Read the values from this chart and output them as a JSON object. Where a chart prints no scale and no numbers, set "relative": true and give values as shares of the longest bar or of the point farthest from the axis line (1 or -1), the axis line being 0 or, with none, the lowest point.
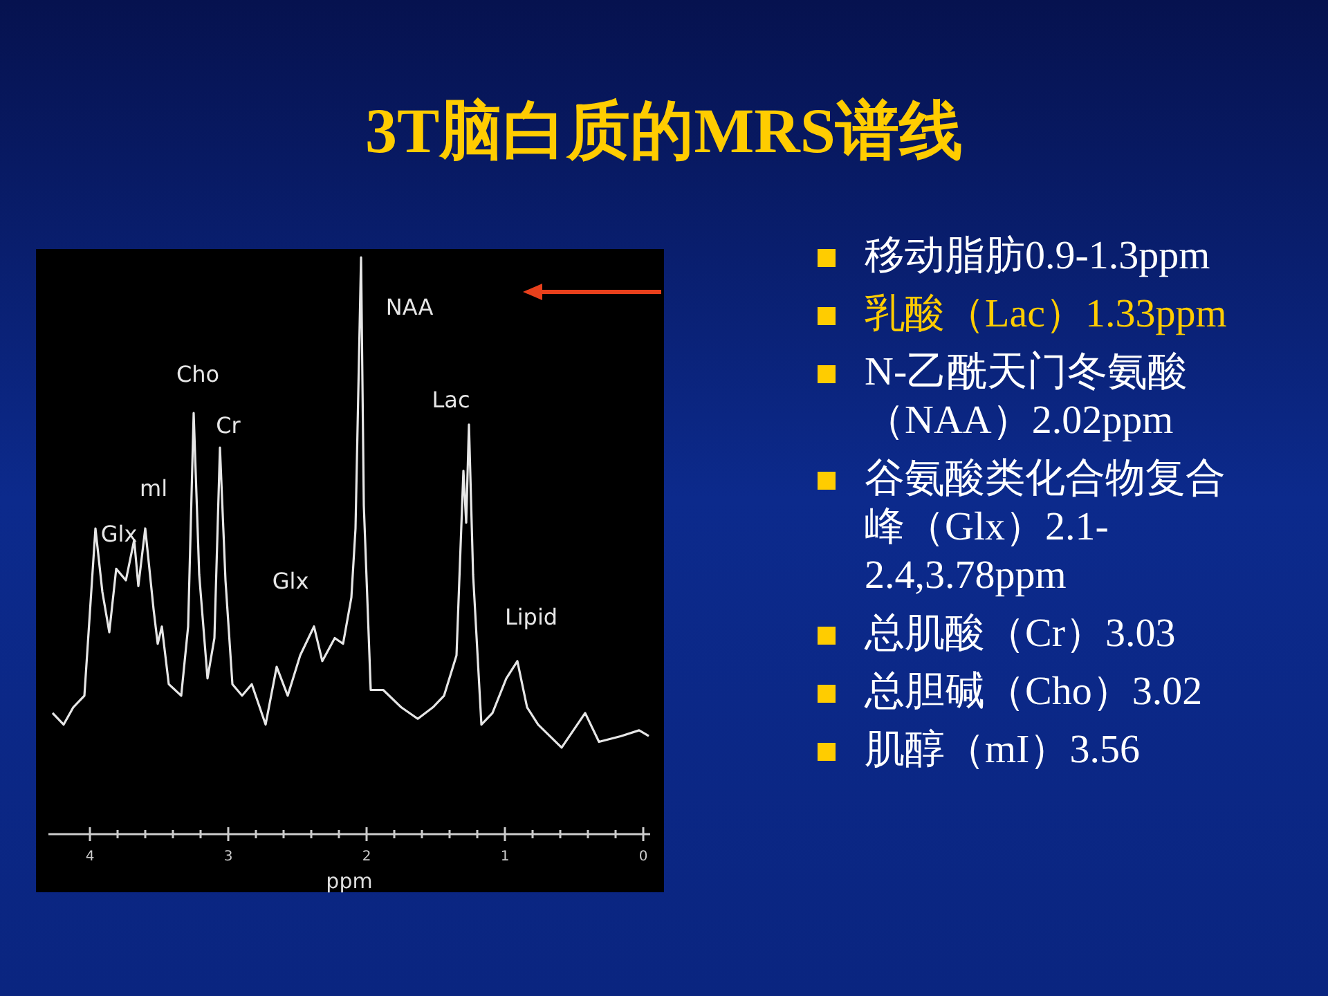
{
  "chart_data": {
    "type": "line",
    "title": "3T脑白质的MRS谱线",
    "xlabel": "ppm",
    "relative": true,
    "xlim": [
      4.3,
      -0.05
    ],
    "xticks": [
      4,
      {
        "value": 3.8,
        "label": null
      },
      {
        "value": 3.6,
        "label": null
      },
      {
        "value": 3.4,
        "label": null
      },
      {
        "value": 3.2,
        "label": null
      },
      3,
      {
        "value": 2.8,
        "label": null
      },
      {
        "value": 2.6,
        "label": null
      },
      {
        "value": 2.4,
        "label": null
      },
      {
        "value": 2.2,
        "label": null
      },
      2,
      {
        "value": 1.8,
        "label": null
      },
      {
        "value": 1.6,
        "label": null
      },
      {
        "value": 1.4,
        "label": null
      },
      {
        "value": 1.2,
        "label": null
      },
      1,
      {
        "value": 0.8,
        "label": null
      },
      {
        "value": 0.6,
        "label": null
      },
      {
        "value": 0.4,
        "label": null
      },
      {
        "value": 0.2,
        "label": null
      },
      0
    ],
    "grid": false,
    "marker": "none",
    "line_style": "solid",
    "series": [
      {
        "color": "#e6e6e6",
        "x": [
          4.27,
          4.19,
          4.12,
          4.04,
          3.96,
          3.91,
          3.86,
          3.81,
          3.74,
          3.68,
          3.65,
          3.6,
          3.54,
          3.51,
          3.48,
          3.43,
          3.34,
          3.29,
          3.25,
          3.21,
          3.15,
          3.1,
          3.06,
          3.02,
          2.97,
          2.9,
          2.83,
          2.73,
          2.65,
          2.57,
          2.48,
          2.38,
          2.32,
          2.23,
          2.17,
          2.11,
          2.08,
          2.04,
          2.02,
          1.97,
          1.88,
          1.75,
          1.63,
          1.52,
          1.44,
          1.35,
          1.3,
          1.28,
          1.26,
          1.23,
          1.17,
          1.09,
          0.99,
          0.91,
          0.84,
          0.76,
          0.59,
          0.42,
          0.32,
          0.16,
          0.03,
          -0.04
        ],
        "values": [
          0.21,
          0.19,
          0.22,
          0.24,
          0.53,
          0.42,
          0.35,
          0.46,
          0.44,
          0.51,
          0.43,
          0.53,
          0.39,
          0.33,
          0.36,
          0.26,
          0.24,
          0.36,
          0.73,
          0.45,
          0.27,
          0.34,
          0.67,
          0.44,
          0.26,
          0.24,
          0.26,
          0.19,
          0.29,
          0.24,
          0.31,
          0.36,
          0.3,
          0.34,
          0.33,
          0.41,
          0.53,
          1,
          0.57,
          0.25,
          0.25,
          0.22,
          0.2,
          0.22,
          0.24,
          0.31,
          0.63,
          0.54,
          0.71,
          0.45,
          0.19,
          0.21,
          0.27,
          0.3,
          0.22,
          0.19,
          0.15,
          0.21,
          0.16,
          0.17,
          0.18,
          0.17
        ]
      }
    ],
    "annotations": [
      {
        "text": "Glx",
        "x": 3.96,
        "y": 0.53
      },
      {
        "text": "ml",
        "x": 3.6,
        "y": 0.53
      },
      {
        "text": "Cho",
        "x": 3.25,
        "y": 0.73
      },
      {
        "text": "Cr",
        "x": 3.06,
        "y": 0.67
      },
      {
        "text": "Glx",
        "x": 2.38,
        "y": 0.36
      },
      {
        "text": "NAA",
        "x": 2.04,
        "y": 1
      },
      {
        "text": "Lac",
        "x": 1.26,
        "y": 0.71
      },
      {
        "text": "Lipid",
        "x": 0.91,
        "y": 0.3
      },
      "移动脂肪0.9-1.3ppm",
      "乳酸（Lac）1.33ppm",
      "N-乙酰天门冬氨酸（NAA）2.02ppm",
      "谷氨酸类化合物复合峰（Glx）2.1-2.4,3.78ppm",
      "总肌酸（Cr）3.03",
      "总胆碱（Cho）3.02",
      "肌醇（mI）3.56"
    ]
  }
}
